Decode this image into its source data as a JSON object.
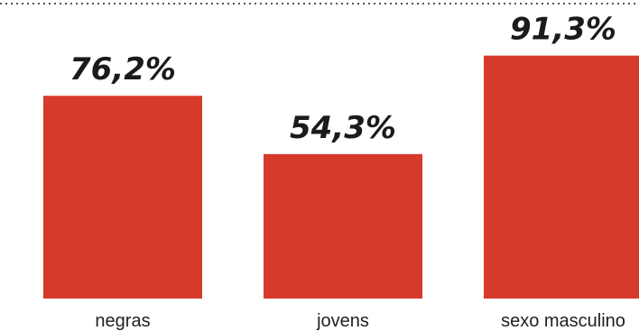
{
  "chart_data": {
    "type": "bar",
    "categories": [
      "negras",
      "jovens",
      "sexo masculino"
    ],
    "values": [
      76.2,
      54.3,
      91.3
    ],
    "value_labels": [
      "76,2%",
      "54,3%",
      "91,3%"
    ],
    "title": "",
    "xlabel": "",
    "ylabel": "",
    "ylim": [
      0,
      100
    ],
    "grid": false,
    "legend": "none",
    "bar_color": "#d63a2b"
  }
}
